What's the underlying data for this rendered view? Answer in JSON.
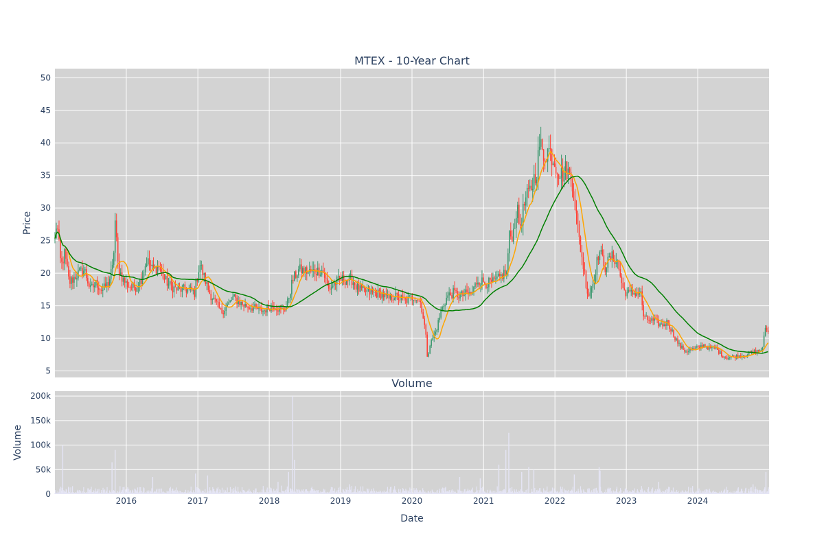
{
  "chart_data": [
    {
      "type": "candlestick",
      "title": "MTEX - 10-Year Chart",
      "ylabel": "Price",
      "xlabel": "",
      "ylim": [
        4,
        51.4
      ],
      "yticks": [
        5,
        10,
        15,
        20,
        25,
        30,
        35,
        40,
        45,
        50
      ],
      "grid": true,
      "legend": "none",
      "colors": {
        "up": "#3d9970",
        "down": "#ff4136",
        "ma_short": "#ffa500",
        "ma_long": "#008000",
        "background": "#d3d3d3"
      },
      "x_range": [
        "2015-01-01",
        "2024-12-31"
      ],
      "price_anchors": [
        [
          "2015-01-01",
          25
        ],
        [
          "2015-01-10",
          28
        ],
        [
          "2015-02-01",
          21
        ],
        [
          "2015-02-20",
          23
        ],
        [
          "2015-03-15",
          18.5
        ],
        [
          "2015-05-01",
          20
        ],
        [
          "2015-06-01",
          20.5
        ],
        [
          "2015-07-01",
          17.5
        ],
        [
          "2015-08-01",
          18.5
        ],
        [
          "2015-09-01",
          17.3
        ],
        [
          "2015-10-01",
          18.5
        ],
        [
          "2015-10-25",
          21
        ],
        [
          "2015-11-05",
          28
        ],
        [
          "2015-11-20",
          21
        ],
        [
          "2015-12-15",
          19
        ],
        [
          "2016-01-15",
          18
        ],
        [
          "2016-02-15",
          17.8
        ],
        [
          "2016-03-15",
          19
        ],
        [
          "2016-04-15",
          22
        ],
        [
          "2016-05-15",
          20.5
        ],
        [
          "2016-06-15",
          21
        ],
        [
          "2016-07-15",
          19
        ],
        [
          "2016-08-15",
          18
        ],
        [
          "2016-09-15",
          17.5
        ],
        [
          "2016-10-15",
          17.5
        ],
        [
          "2016-11-15",
          17.5
        ],
        [
          "2016-12-15",
          17
        ],
        [
          "2017-01-10",
          21.5
        ],
        [
          "2017-02-01",
          19.5
        ],
        [
          "2017-03-01",
          17
        ],
        [
          "2017-04-01",
          15.5
        ],
        [
          "2017-05-01",
          14
        ],
        [
          "2017-06-01",
          15
        ],
        [
          "2017-07-01",
          16.3
        ],
        [
          "2017-08-01",
          15.5
        ],
        [
          "2017-09-01",
          15
        ],
        [
          "2017-10-01",
          14.8
        ],
        [
          "2017-11-01",
          14.5
        ],
        [
          "2017-12-01",
          14.2
        ],
        [
          "2018-01-01",
          14.8
        ],
        [
          "2018-02-01",
          15
        ],
        [
          "2018-03-01",
          14.2
        ],
        [
          "2018-04-01",
          15
        ],
        [
          "2018-05-01",
          19
        ],
        [
          "2018-06-01",
          20.5
        ],
        [
          "2018-08-01",
          20.2
        ],
        [
          "2018-10-01",
          20.5
        ],
        [
          "2018-11-01",
          17.5
        ],
        [
          "2018-12-01",
          18.5
        ],
        [
          "2019-01-01",
          19
        ],
        [
          "2019-03-01",
          19
        ],
        [
          "2019-04-01",
          17.5
        ],
        [
          "2019-06-01",
          17
        ],
        [
          "2019-08-01",
          16.8
        ],
        [
          "2019-09-01",
          16
        ],
        [
          "2019-10-01",
          16.5
        ],
        [
          "2019-12-01",
          15.8
        ],
        [
          "2020-01-15",
          16.5
        ],
        [
          "2020-02-15",
          15.5
        ],
        [
          "2020-03-10",
          11
        ],
        [
          "2020-03-20",
          7
        ],
        [
          "2020-04-01",
          9
        ],
        [
          "2020-05-01",
          11
        ],
        [
          "2020-06-01",
          14.5
        ],
        [
          "2020-07-01",
          16.5
        ],
        [
          "2020-08-01",
          17
        ],
        [
          "2020-09-01",
          16.5
        ],
        [
          "2020-10-01",
          16.8
        ],
        [
          "2020-11-01",
          16.8
        ],
        [
          "2020-12-01",
          19
        ],
        [
          "2021-01-15",
          18.5
        ],
        [
          "2021-02-15",
          18.5
        ],
        [
          "2021-03-15",
          19
        ],
        [
          "2021-04-15",
          20
        ],
        [
          "2021-05-01",
          20
        ],
        [
          "2021-05-10",
          25.5
        ],
        [
          "2021-06-01",
          26
        ],
        [
          "2021-06-20",
          30
        ],
        [
          "2021-07-05",
          27
        ],
        [
          "2021-08-01",
          31
        ],
        [
          "2021-09-01",
          33
        ],
        [
          "2021-10-01",
          36
        ],
        [
          "2021-10-15",
          40
        ],
        [
          "2021-11-01",
          38
        ],
        [
          "2021-12-01",
          39
        ],
        [
          "2022-01-01",
          37
        ],
        [
          "2022-02-01",
          35
        ],
        [
          "2022-03-01",
          36
        ],
        [
          "2022-04-01",
          34
        ],
        [
          "2022-05-01",
          26
        ],
        [
          "2022-06-01",
          20
        ],
        [
          "2022-06-20",
          16.5
        ],
        [
          "2022-07-15",
          18.5
        ],
        [
          "2022-08-15",
          23.5
        ],
        [
          "2022-09-15",
          21
        ],
        [
          "2022-10-15",
          22.5
        ],
        [
          "2022-11-15",
          22
        ],
        [
          "2022-12-15",
          17.5
        ],
        [
          "2023-01-15",
          16.8
        ],
        [
          "2023-02-15",
          17
        ],
        [
          "2023-03-15",
          17
        ],
        [
          "2023-04-01",
          13
        ],
        [
          "2023-05-01",
          12.8
        ],
        [
          "2023-06-01",
          12.5
        ],
        [
          "2023-07-01",
          12
        ],
        [
          "2023-08-01",
          12.5
        ],
        [
          "2023-09-01",
          10.5
        ],
        [
          "2023-10-01",
          8.8
        ],
        [
          "2023-11-01",
          8
        ],
        [
          "2023-12-01",
          8.3
        ],
        [
          "2024-01-01",
          8.5
        ],
        [
          "2024-02-01",
          9
        ],
        [
          "2024-03-01",
          8.5
        ],
        [
          "2024-04-01",
          8.5
        ],
        [
          "2024-05-01",
          7.5
        ],
        [
          "2024-06-01",
          7
        ],
        [
          "2024-07-01",
          7.2
        ],
        [
          "2024-08-01",
          7.3
        ],
        [
          "2024-09-01",
          7.5
        ],
        [
          "2024-10-01",
          7.8
        ],
        [
          "2024-11-01",
          8
        ],
        [
          "2024-12-01",
          8.5
        ],
        [
          "2024-12-10",
          12
        ],
        [
          "2024-12-20",
          11
        ],
        [
          "2024-12-31",
          11.5
        ]
      ],
      "moving_averages": [
        {
          "name": "",
          "color": "#ffa500",
          "window_days": 50
        },
        {
          "name": "",
          "color": "#008000",
          "window_days": 200
        }
      ]
    },
    {
      "type": "bar",
      "title": "Volume",
      "ylabel": "Volume",
      "xlabel": "Date",
      "ylim": [
        0,
        210000
      ],
      "yticks": [
        0,
        50000,
        100000,
        150000,
        200000
      ],
      "ytick_labels": [
        "0",
        "50k",
        "100k",
        "150k",
        "200k"
      ],
      "xtick_labels": [
        "2016",
        "2017",
        "2018",
        "2019",
        "2020",
        "2021",
        "2022",
        "2023",
        "2024"
      ],
      "grid": true,
      "bar_color": "#e5e5f5",
      "volume_spikes": [
        [
          "2015-02-10",
          100000
        ],
        [
          "2015-10-20",
          65000
        ],
        [
          "2015-11-05",
          90000
        ],
        [
          "2016-05-15",
          35000
        ],
        [
          "2016-12-20",
          42000
        ],
        [
          "2017-02-20",
          38000
        ],
        [
          "2018-02-15",
          25000
        ],
        [
          "2018-04-10",
          45000
        ],
        [
          "2018-05-01",
          200000
        ],
        [
          "2018-05-10",
          70000
        ],
        [
          "2019-02-15",
          20000
        ],
        [
          "2020-09-01",
          35000
        ],
        [
          "2020-12-15",
          32000
        ],
        [
          "2021-03-20",
          60000
        ],
        [
          "2021-04-25",
          90000
        ],
        [
          "2021-05-10",
          125000
        ],
        [
          "2021-07-15",
          45000
        ],
        [
          "2021-08-20",
          55000
        ],
        [
          "2021-09-15",
          50000
        ],
        [
          "2022-04-10",
          40000
        ],
        [
          "2022-08-15",
          55000
        ],
        [
          "2022-08-20",
          48000
        ],
        [
          "2023-06-15",
          25000
        ],
        [
          "2024-10-10",
          20000
        ],
        [
          "2024-12-15",
          45000
        ]
      ]
    }
  ]
}
